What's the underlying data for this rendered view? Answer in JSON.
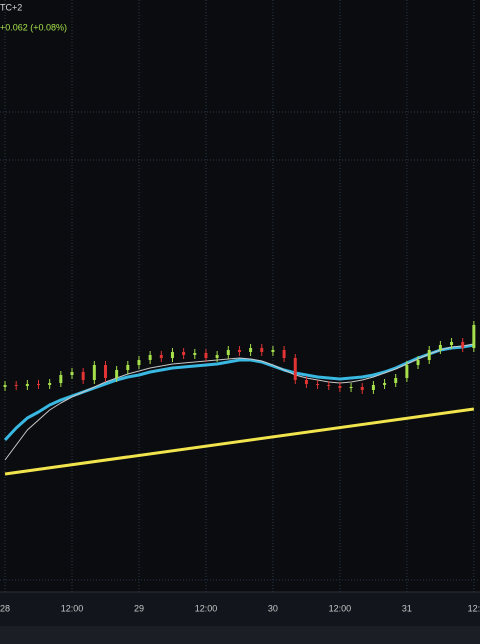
{
  "chart_data": {
    "type": "candlestick",
    "title": "TC+2",
    "subtitle": "+0.062 (+0.08%)",
    "x": [
      0,
      2,
      4,
      6,
      8,
      10,
      12,
      14,
      16,
      18,
      20,
      22,
      24,
      26,
      28,
      30,
      32,
      34,
      36,
      38,
      40,
      42,
      44,
      46,
      48,
      50,
      52,
      54,
      56,
      58,
      60,
      62,
      64,
      66,
      68,
      70,
      72,
      74,
      76,
      78,
      80,
      82,
      84
    ],
    "open": [
      203,
      205,
      204,
      206,
      205,
      207,
      215,
      218,
      210,
      225,
      212,
      220,
      225,
      230,
      235,
      232,
      238,
      235,
      237,
      232,
      235,
      240,
      238,
      242,
      238,
      240,
      232,
      210,
      206,
      205,
      204,
      202,
      203,
      200,
      205,
      207,
      212,
      225,
      230,
      240,
      245,
      248,
      242
    ],
    "high": [
      209,
      209,
      210,
      210,
      211,
      219,
      222,
      222,
      229,
      229,
      224,
      229,
      234,
      239,
      239,
      242,
      242,
      241,
      241,
      239,
      244,
      244,
      246,
      246,
      244,
      244,
      236,
      214,
      210,
      209,
      208,
      207,
      207,
      209,
      211,
      216,
      229,
      234,
      244,
      249,
      252,
      252,
      269
    ],
    "low": [
      199,
      200,
      200,
      201,
      201,
      203,
      211,
      206,
      206,
      208,
      208,
      216,
      221,
      226,
      228,
      228,
      231,
      231,
      228,
      228,
      231,
      234,
      234,
      234,
      234,
      228,
      206,
      202,
      201,
      200,
      198,
      198,
      196,
      196,
      201,
      203,
      208,
      221,
      226,
      236,
      241,
      238,
      238
    ],
    "close": [
      205,
      204,
      206,
      205,
      207,
      215,
      218,
      210,
      225,
      212,
      220,
      225,
      230,
      235,
      232,
      238,
      235,
      237,
      232,
      235,
      240,
      238,
      242,
      238,
      240,
      232,
      210,
      206,
      205,
      204,
      202,
      203,
      200,
      205,
      207,
      212,
      225,
      230,
      240,
      245,
      248,
      242,
      265
    ],
    "up_color": "#a6e04a",
    "down_color": "#e23434",
    "series": [
      {
        "color": "#39b8e2",
        "values": [
          150,
          162,
          172,
          178,
          185,
          190,
          194,
          198,
          202,
          206,
          210,
          213,
          215,
          218,
          220,
          222,
          223,
          224,
          225,
          226,
          228,
          230,
          230,
          228,
          224,
          220,
          217,
          215,
          213,
          212,
          211,
          212,
          213,
          215,
          218,
          222,
          227,
          232,
          236,
          240,
          242,
          243,
          245
        ]
      },
      {
        "color": "#c8c8c8",
        "values": [
          130,
          145,
          160,
          170,
          180,
          187,
          193,
          198,
          203,
          208,
          212,
          216,
          219,
          222,
          224,
          226,
          227,
          228,
          229,
          230,
          231,
          232,
          231,
          229,
          225,
          220,
          215,
          212,
          210,
          208,
          207,
          208,
          210,
          213,
          217,
          221,
          226,
          231,
          236,
          240,
          243,
          244,
          246
        ]
      },
      {
        "color": "#f2e44c",
        "x": [
          0,
          84
        ],
        "values": [
          116,
          181
        ]
      }
    ],
    "xlim": [
      -0.9,
      85.1
    ],
    "ylim": [
      0,
      590
    ],
    "xticks": [
      {
        "value": 0,
        "label": "28"
      },
      {
        "value": 12,
        "label": "12:00"
      },
      {
        "value": 24,
        "label": "29"
      },
      {
        "value": 36,
        "label": "12:00"
      },
      {
        "value": 48,
        "label": "30"
      },
      {
        "value": 60,
        "label": "12:00"
      },
      {
        "value": 72,
        "label": "31"
      },
      {
        "value": 84,
        "label": "12:"
      }
    ],
    "grid": true
  }
}
